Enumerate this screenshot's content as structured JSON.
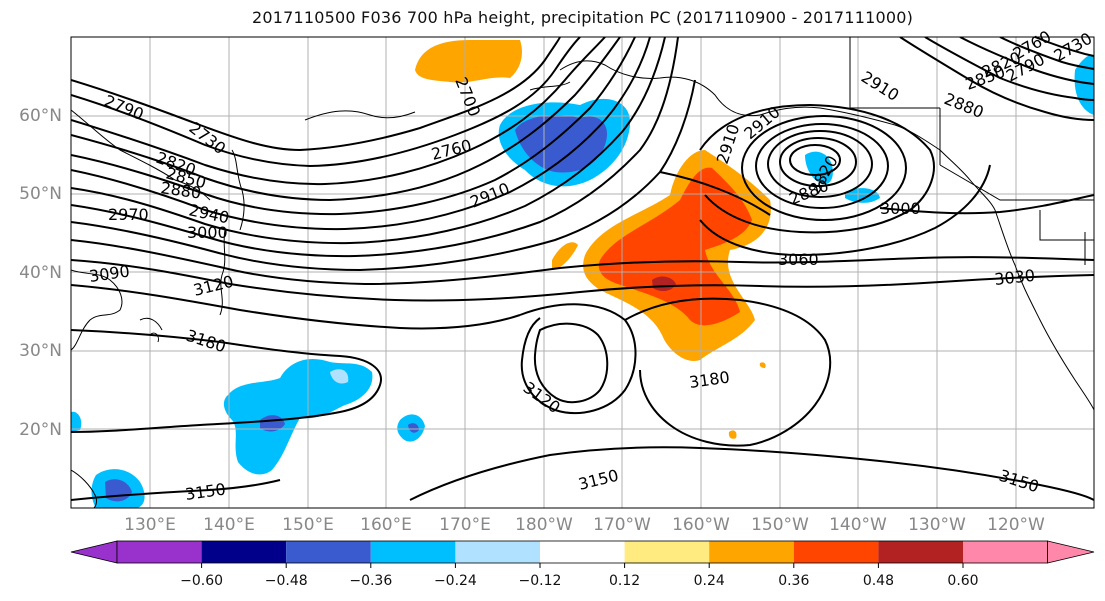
{
  "title": "2017110500 F036 700 hPa height, precipitation PC (2017110900 - 2017111000)",
  "map": {
    "lat_labels": [
      "60°N",
      "50°N",
      "40°N",
      "30°N",
      "20°N"
    ],
    "lon_labels": [
      "130°E",
      "140°E",
      "150°E",
      "160°E",
      "170°E",
      "180°W",
      "170°W",
      "160°W",
      "150°W",
      "140°W",
      "130°W",
      "120°W"
    ],
    "contour_labels": [
      "2790",
      "2730",
      "2820",
      "2850",
      "2880",
      "2970",
      "2940",
      "3000",
      "3090",
      "3120",
      "3180",
      "2760",
      "2910",
      "2700",
      "2910",
      "2910",
      "3060",
      "3000",
      "2880",
      "2820",
      "3120",
      "3180",
      "3150",
      "3150",
      "3150",
      "3030",
      "2910",
      "2880",
      "2850",
      "2820",
      "2790",
      "2760",
      "2730"
    ],
    "colors": {
      "land_line": "#000000",
      "grid": "#b0b0b0",
      "contour": "#000000"
    }
  },
  "colorbar": {
    "tick_labels": [
      "−0.60",
      "−0.48",
      "−0.36",
      "−0.24",
      "−0.12",
      "0.12",
      "0.24",
      "0.36",
      "0.48",
      "0.60"
    ],
    "colors": [
      "#9932cc",
      "#00008b",
      "#3a5bd0",
      "#00bfff",
      "#b0e2ff",
      "#ffffff",
      "#ffeb80",
      "#ffa500",
      "#ff4500",
      "#b22222",
      "#ff88aa"
    ]
  }
}
